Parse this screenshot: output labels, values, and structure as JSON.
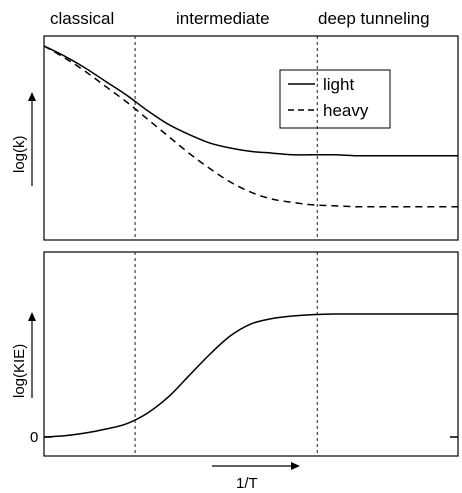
{
  "chart_data": [
    {
      "type": "line",
      "panel": "top",
      "ylabel": "log(k)",
      "xlabel": "",
      "x_axis_ticks_shown": false,
      "y_axis_ticks_shown": false,
      "legend": {
        "placement": "top-right",
        "entries": [
          {
            "label": "light",
            "style": "solid"
          },
          {
            "label": "heavy",
            "style": "dashed"
          }
        ]
      },
      "x": [
        0.0,
        0.05,
        0.1,
        0.15,
        0.2,
        0.25,
        0.3,
        0.35,
        0.4,
        0.45,
        0.5,
        0.55,
        0.6,
        0.65,
        0.7,
        0.75,
        0.8,
        0.85,
        0.9,
        0.95,
        1.0
      ],
      "series": [
        {
          "name": "light",
          "style": "solid",
          "values": [
            1.0,
            0.94,
            0.87,
            0.79,
            0.71,
            0.62,
            0.54,
            0.48,
            0.43,
            0.4,
            0.38,
            0.37,
            0.36,
            0.36,
            0.36,
            0.355,
            0.355,
            0.355,
            0.355,
            0.355,
            0.355
          ]
        },
        {
          "name": "heavy",
          "style": "dashed",
          "values": [
            1.0,
            0.93,
            0.85,
            0.76,
            0.67,
            0.57,
            0.47,
            0.37,
            0.28,
            0.2,
            0.14,
            0.1,
            0.08,
            0.065,
            0.06,
            0.055,
            0.055,
            0.055,
            0.055,
            0.055,
            0.055
          ]
        }
      ]
    },
    {
      "type": "line",
      "panel": "bottom",
      "ylabel": "log(KIE)",
      "xlabel": "1/T",
      "y_tick_labels": [
        "0"
      ],
      "x_axis_ticks_shown": false,
      "x": [
        0.0,
        0.05,
        0.1,
        0.15,
        0.2,
        0.25,
        0.3,
        0.35,
        0.4,
        0.45,
        0.5,
        0.55,
        0.6,
        0.65,
        0.7,
        0.75,
        0.8,
        0.85,
        0.9,
        0.95,
        1.0
      ],
      "series": [
        {
          "style": "solid",
          "values": [
            0.0,
            0.01,
            0.03,
            0.06,
            0.1,
            0.18,
            0.3,
            0.46,
            0.62,
            0.76,
            0.85,
            0.89,
            0.91,
            0.92,
            0.925,
            0.925,
            0.925,
            0.925,
            0.925,
            0.925,
            0.925
          ]
        }
      ]
    }
  ],
  "regimes": {
    "labels": [
      "classical",
      "intermediate",
      "deep tunneling"
    ],
    "boundaries_x": [
      0.22,
      0.66
    ],
    "boundary_style": "dashed"
  },
  "colors": {
    "line": "#000000",
    "background": "#ffffff"
  }
}
